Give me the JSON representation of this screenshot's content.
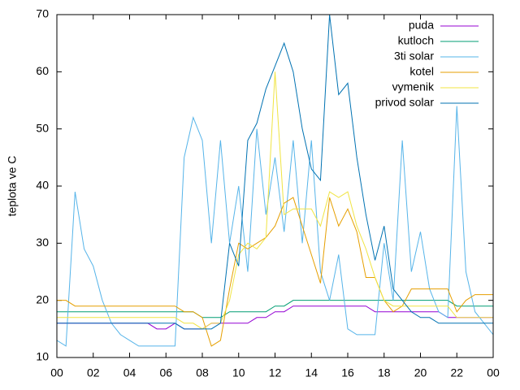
{
  "chart_data": {
    "type": "line",
    "ylabel": "teplota ve C",
    "x": [
      0,
      0.5,
      1,
      1.5,
      2,
      2.5,
      3,
      3.5,
      4,
      4.5,
      5,
      5.5,
      6,
      6.5,
      7,
      7.5,
      8,
      8.5,
      9,
      9.5,
      10,
      10.5,
      11,
      11.5,
      12,
      12.5,
      13,
      13.5,
      14,
      14.5,
      15,
      15.5,
      16,
      16.5,
      17,
      17.5,
      18,
      18.5,
      19,
      19.5,
      20,
      20.5,
      21,
      21.5,
      22,
      22.5,
      23,
      23.5,
      24
    ],
    "series": [
      {
        "name": "puda",
        "color": "#9400d3",
        "values": [
          16,
          16,
          16,
          16,
          16,
          16,
          16,
          16,
          16,
          16,
          16,
          15,
          15,
          16,
          15,
          15,
          15,
          16,
          16,
          16,
          16,
          16,
          17,
          17,
          18,
          18,
          19,
          19,
          19,
          19,
          19,
          19,
          19,
          19,
          19,
          18,
          18,
          18,
          18,
          18,
          18,
          18,
          18,
          17,
          17,
          17,
          17,
          17,
          17
        ]
      },
      {
        "name": "kutloch",
        "color": "#009e73",
        "values": [
          18,
          18,
          18,
          18,
          18,
          18,
          18,
          18,
          18,
          18,
          18,
          18,
          18,
          18,
          18,
          18,
          17,
          17,
          17,
          18,
          18,
          18,
          18,
          18,
          19,
          19,
          20,
          20,
          20,
          20,
          20,
          20,
          20,
          20,
          20,
          20,
          20,
          20,
          20,
          20,
          20,
          20,
          20,
          20,
          19,
          19,
          19,
          19,
          19
        ]
      },
      {
        "name": "3ti solar",
        "color": "#56b4e9",
        "values": [
          13,
          12,
          39,
          29,
          26,
          20,
          16,
          14,
          13,
          12,
          12,
          12,
          12,
          12,
          45,
          52,
          48,
          30,
          48,
          30,
          40,
          25,
          50,
          35,
          45,
          32,
          48,
          30,
          48,
          25,
          20,
          28,
          15,
          14,
          14,
          14,
          30,
          20,
          48,
          25,
          32,
          22,
          18,
          17,
          54,
          25,
          18,
          16,
          14
        ]
      },
      {
        "name": "kotel",
        "color": "#e69f00",
        "values": [
          20,
          20,
          19,
          19,
          19,
          19,
          19,
          19,
          19,
          19,
          19,
          19,
          19,
          19,
          18,
          18,
          17,
          12,
          13,
          22,
          30,
          29,
          30,
          31,
          33,
          37,
          38,
          33,
          28,
          23,
          38,
          33,
          36,
          32,
          24,
          24,
          20,
          18,
          19,
          22,
          22,
          22,
          22,
          22,
          18,
          20,
          21,
          21,
          21
        ]
      },
      {
        "name": "vymenik",
        "color": "#f0e442",
        "values": [
          17,
          17,
          17,
          17,
          17,
          17,
          17,
          17,
          17,
          17,
          17,
          17,
          17,
          17,
          16,
          16,
          15,
          16,
          16,
          20,
          28,
          30,
          29,
          31,
          60,
          35,
          36,
          36,
          36,
          33,
          39,
          38,
          39,
          33,
          29,
          24,
          20,
          19,
          19,
          19,
          19,
          19,
          19,
          19,
          17,
          17,
          17,
          17,
          17
        ]
      },
      {
        "name": "privod solar",
        "color": "#0072b2",
        "values": [
          16,
          16,
          16,
          16,
          16,
          16,
          16,
          16,
          16,
          16,
          16,
          16,
          16,
          16,
          15,
          15,
          15,
          15,
          16,
          30,
          26,
          48,
          51,
          57,
          61,
          65,
          60,
          50,
          43,
          41,
          70,
          56,
          58,
          45,
          35,
          27,
          33,
          22,
          20,
          18,
          17,
          17,
          16,
          16,
          16,
          16,
          16,
          16,
          16
        ]
      }
    ],
    "xlim": [
      0,
      24
    ],
    "xticks": [
      {
        "value": 0,
        "label": "00"
      },
      {
        "value": 2,
        "label": "02"
      },
      {
        "value": 4,
        "label": "04"
      },
      {
        "value": 6,
        "label": "06"
      },
      {
        "value": 8,
        "label": "08"
      },
      10,
      12,
      14,
      16,
      18,
      20,
      22,
      {
        "value": 24,
        "label": "00"
      }
    ],
    "ylim": [
      10,
      70
    ],
    "yticks": [
      10,
      20,
      30,
      40,
      50,
      60,
      70
    ],
    "legend": "top-right",
    "grid": false
  }
}
